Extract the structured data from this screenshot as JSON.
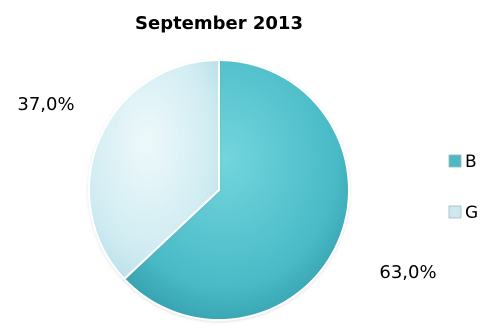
{
  "chart_data": {
    "type": "pie",
    "title": "September 2013",
    "categories": [
      "B",
      "G"
    ],
    "values": [
      63.0,
      37.0
    ],
    "data_labels": [
      "63,0%",
      "37,0%"
    ],
    "legend": {
      "position": "right",
      "entries": [
        "B",
        "G"
      ]
    },
    "colors": [
      "#4fc1cc",
      "#cbe9ef"
    ]
  }
}
